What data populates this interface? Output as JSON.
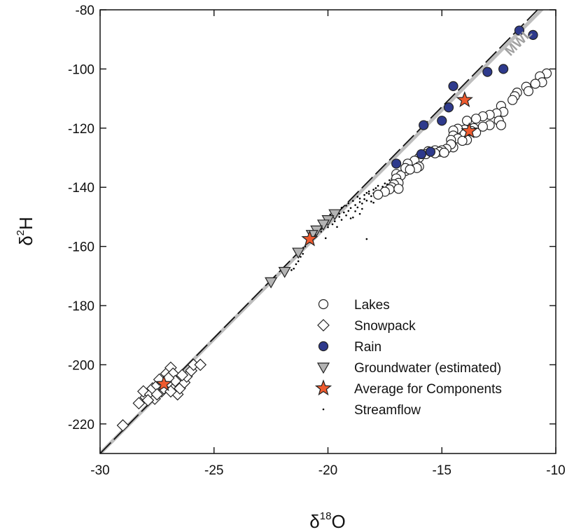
{
  "chart_data": {
    "type": "scatter",
    "xlabel_base": "δ",
    "xlabel_sup": "18",
    "xlabel_tail": "O",
    "ylabel_base": "δ",
    "ylabel_sup": "2",
    "ylabel_tail": "H",
    "xlim": [
      -30,
      -10
    ],
    "ylim": [
      -230,
      -80
    ],
    "x_ticks": [
      -30,
      -25,
      -20,
      -15,
      -10
    ],
    "y_ticks": [
      -80,
      -100,
      -120,
      -140,
      -160,
      -180,
      -200,
      -220
    ],
    "x_tick_labels": [
      "-30",
      "-25",
      "-20",
      "-15",
      "-10"
    ],
    "y_tick_labels": [
      "-80",
      "-100",
      "-120",
      "-140",
      "-160",
      "-180",
      "-200",
      "-220"
    ],
    "grid": false,
    "legend_placement": "bottom-right",
    "reference_lines": [
      {
        "name": "MWL",
        "label": "MWL",
        "color": "#bebebe",
        "style": "solid",
        "points": [
          [
            -30,
            -230
          ],
          [
            -10.5,
            -79
          ]
        ]
      },
      {
        "name": "LMWL",
        "color": "#111111",
        "style": "dashed",
        "points": [
          [
            -30,
            -230
          ],
          [
            -10.8,
            -80
          ]
        ]
      }
    ],
    "colors": {
      "lakes_fill": "#ffffff",
      "snowpack_fill": "#ffffff",
      "rain_fill": "#2e3a8c",
      "groundwater_fill": "#b4b4b4",
      "average_fill": "#ee5a2e",
      "streamflow": "#000000",
      "marker_edge": "#222222"
    },
    "series": [
      {
        "name": "Lakes",
        "marker": "circle",
        "points": [
          [
            -10.4,
            -101.5
          ],
          [
            -10.7,
            -102.5
          ],
          [
            -10.6,
            -104.5
          ],
          [
            -10.9,
            -105
          ],
          [
            -11.3,
            -106
          ],
          [
            -11.2,
            -107.5
          ],
          [
            -11.7,
            -108
          ],
          [
            -11.8,
            -109.2
          ],
          [
            -11.9,
            -110.5
          ],
          [
            -12.4,
            -112.5
          ],
          [
            -12.3,
            -114.5
          ],
          [
            -12.6,
            -115
          ],
          [
            -12.9,
            -115.5
          ],
          [
            -13.2,
            -116
          ],
          [
            -13.5,
            -116.8
          ],
          [
            -13.9,
            -117.5
          ],
          [
            -12.5,
            -117.5
          ],
          [
            -12.4,
            -119
          ],
          [
            -12.9,
            -119
          ],
          [
            -13.2,
            -119.5
          ],
          [
            -13.6,
            -120
          ],
          [
            -14.0,
            -120.5
          ],
          [
            -14.3,
            -120.2
          ],
          [
            -14.5,
            -120.8
          ],
          [
            -13.7,
            -121
          ],
          [
            -13.5,
            -121.5
          ],
          [
            -14.0,
            -122
          ],
          [
            -14.5,
            -122.5
          ],
          [
            -14.3,
            -123.5
          ],
          [
            -14.6,
            -124
          ],
          [
            -13.9,
            -124
          ],
          [
            -14.1,
            -124.3
          ],
          [
            -14.5,
            -126.5
          ],
          [
            -14.6,
            -125.5
          ],
          [
            -14.8,
            -127
          ],
          [
            -15.0,
            -127.5
          ],
          [
            -15.3,
            -127.5
          ],
          [
            -15.6,
            -127.8
          ],
          [
            -15.1,
            -128
          ],
          [
            -14.9,
            -128.3
          ],
          [
            -15.3,
            -128.5
          ],
          [
            -15.7,
            -128.8
          ],
          [
            -16.0,
            -130
          ],
          [
            -16.2,
            -131
          ],
          [
            -16.5,
            -132
          ],
          [
            -16.0,
            -133
          ],
          [
            -16.1,
            -133.5
          ],
          [
            -16.6,
            -134.5
          ],
          [
            -17.0,
            -135.5
          ],
          [
            -16.8,
            -136
          ],
          [
            -17.0,
            -137
          ],
          [
            -16.9,
            -138.5
          ],
          [
            -17.1,
            -139
          ],
          [
            -17.2,
            -140
          ],
          [
            -16.9,
            -140.5
          ],
          [
            -17.3,
            -140.7
          ],
          [
            -17.5,
            -141.5
          ],
          [
            -17.8,
            -142.5
          ],
          [
            -16.6,
            -133.5
          ],
          [
            -16.4,
            -134
          ]
        ]
      },
      {
        "name": "Snowpack",
        "marker": "diamond",
        "points": [
          [
            -29.0,
            -220.5
          ],
          [
            -28.3,
            -213
          ],
          [
            -28.0,
            -211
          ],
          [
            -28.1,
            -209
          ],
          [
            -27.8,
            -210
          ],
          [
            -27.7,
            -208
          ],
          [
            -27.5,
            -207
          ],
          [
            -27.6,
            -211.5
          ],
          [
            -27.3,
            -209
          ],
          [
            -27.4,
            -205
          ],
          [
            -27.1,
            -203
          ],
          [
            -26.9,
            -201
          ],
          [
            -26.8,
            -205
          ],
          [
            -26.7,
            -207
          ],
          [
            -26.6,
            -210
          ],
          [
            -26.5,
            -208
          ],
          [
            -26.3,
            -206
          ],
          [
            -26.2,
            -204
          ],
          [
            -26.0,
            -202
          ],
          [
            -25.9,
            -200
          ],
          [
            -25.6,
            -200
          ],
          [
            -26.8,
            -203
          ],
          [
            -27.0,
            -206
          ],
          [
            -27.2,
            -208
          ],
          [
            -27.9,
            -212
          ],
          [
            -26.4,
            -203.5
          ],
          [
            -26.7,
            -205.5
          ],
          [
            -27.5,
            -210
          ],
          [
            -26.9,
            -209
          ],
          [
            -27.0,
            -204.5
          ]
        ]
      },
      {
        "name": "Rain",
        "marker": "circle-filled",
        "points": [
          [
            -11.6,
            -87
          ],
          [
            -11.0,
            -88.5
          ],
          [
            -12.3,
            -100
          ],
          [
            -13.0,
            -101
          ],
          [
            -14.5,
            -105.8
          ],
          [
            -14.7,
            -113
          ],
          [
            -15.0,
            -117.5
          ],
          [
            -15.8,
            -119
          ],
          [
            -15.9,
            -128.8
          ],
          [
            -15.5,
            -128
          ],
          [
            -17.0,
            -132
          ]
        ]
      },
      {
        "name": "Groundwater (estimated)",
        "marker": "triangle-down",
        "points": [
          [
            -19.7,
            -149
          ],
          [
            -20.0,
            -151
          ],
          [
            -20.2,
            -152.5
          ],
          [
            -20.5,
            -154.5
          ],
          [
            -20.7,
            -156
          ],
          [
            -21.3,
            -162
          ],
          [
            -21.9,
            -168.5
          ],
          [
            -22.5,
            -172
          ]
        ]
      },
      {
        "name": "Average for Components",
        "marker": "star",
        "points": [
          [
            -14.0,
            -110.5
          ],
          [
            -13.8,
            -121
          ],
          [
            -20.8,
            -157.5
          ],
          [
            -27.2,
            -206.5
          ]
        ]
      },
      {
        "name": "Streamflow",
        "marker": "dot",
        "points": [
          [
            -17.0,
            -138
          ],
          [
            -17.2,
            -138.5
          ],
          [
            -17.4,
            -139
          ],
          [
            -17.1,
            -140
          ],
          [
            -17.5,
            -140.5
          ],
          [
            -17.6,
            -141
          ],
          [
            -17.3,
            -141.3
          ],
          [
            -17.8,
            -141.6
          ],
          [
            -18.0,
            -142
          ],
          [
            -17.7,
            -142.5
          ],
          [
            -18.1,
            -143
          ],
          [
            -18.2,
            -142.2
          ],
          [
            -18.4,
            -144
          ],
          [
            -18.3,
            -144.5
          ],
          [
            -18.6,
            -145
          ],
          [
            -18.5,
            -145.5
          ],
          [
            -18.8,
            -146
          ],
          [
            -18.7,
            -146.8
          ],
          [
            -19.0,
            -147
          ],
          [
            -19.1,
            -148
          ],
          [
            -19.3,
            -148.5
          ],
          [
            -19.2,
            -149.5
          ],
          [
            -19.5,
            -150
          ],
          [
            -19.4,
            -151
          ],
          [
            -19.7,
            -151.5
          ],
          [
            -19.8,
            -152.5
          ],
          [
            -20.0,
            -153.5
          ],
          [
            -20.3,
            -155
          ],
          [
            -20.5,
            -156
          ],
          [
            -20.6,
            -157
          ],
          [
            -20.8,
            -158.5
          ],
          [
            -21.0,
            -160
          ],
          [
            -21.1,
            -162.5
          ],
          [
            -21.2,
            -163.5
          ],
          [
            -21.3,
            -165
          ],
          [
            -21.4,
            -166
          ],
          [
            -21.5,
            -167.5
          ],
          [
            -21.6,
            -168
          ],
          [
            -18.3,
            -157.5
          ],
          [
            -18.6,
            -149
          ],
          [
            -19.0,
            -150.5
          ],
          [
            -17.9,
            -143.5
          ],
          [
            -17.5,
            -138.7
          ],
          [
            -17.8,
            -139.5
          ],
          [
            -18.0,
            -140.8
          ],
          [
            -18.2,
            -141.4
          ],
          [
            -18.4,
            -142.6
          ],
          [
            -18.6,
            -143.8
          ],
          [
            -18.9,
            -144.6
          ],
          [
            -19.2,
            -146.2
          ],
          [
            -19.6,
            -147.8
          ],
          [
            -19.9,
            -149.2
          ],
          [
            -20.1,
            -150.4
          ],
          [
            -17.2,
            -137.2
          ],
          [
            -17.6,
            -139.8
          ],
          [
            -18.1,
            -144.8
          ],
          [
            -18.5,
            -147.3
          ],
          [
            -18.8,
            -148.1
          ],
          [
            -19.1,
            -145.4
          ],
          [
            -19.4,
            -146.9
          ],
          [
            -16.8,
            -136.4
          ],
          [
            -17.0,
            -136.9
          ],
          [
            -17.3,
            -137.6
          ],
          [
            -17.9,
            -140.3
          ],
          [
            -18.3,
            -141.9
          ],
          [
            -18.7,
            -143.2
          ],
          [
            -19.5,
            -148.9
          ],
          [
            -20.2,
            -152.1
          ],
          [
            -20.4,
            -153.8
          ],
          [
            -16.6,
            -135.2
          ],
          [
            -16.9,
            -139.1
          ],
          [
            -18.0,
            -145.2
          ],
          [
            -18.9,
            -150.2
          ],
          [
            -19.6,
            -153.4
          ],
          [
            -20.1,
            -157.2
          ]
        ]
      }
    ],
    "legend": [
      {
        "marker": "circle",
        "label": "Lakes"
      },
      {
        "marker": "diamond",
        "label": "Snowpack"
      },
      {
        "marker": "circle-filled",
        "label": "Rain"
      },
      {
        "marker": "triangle-down",
        "label": "Groundwater (estimated)"
      },
      {
        "marker": "star",
        "label": "Average for Components"
      },
      {
        "marker": "dot",
        "label": "Streamflow"
      }
    ]
  }
}
